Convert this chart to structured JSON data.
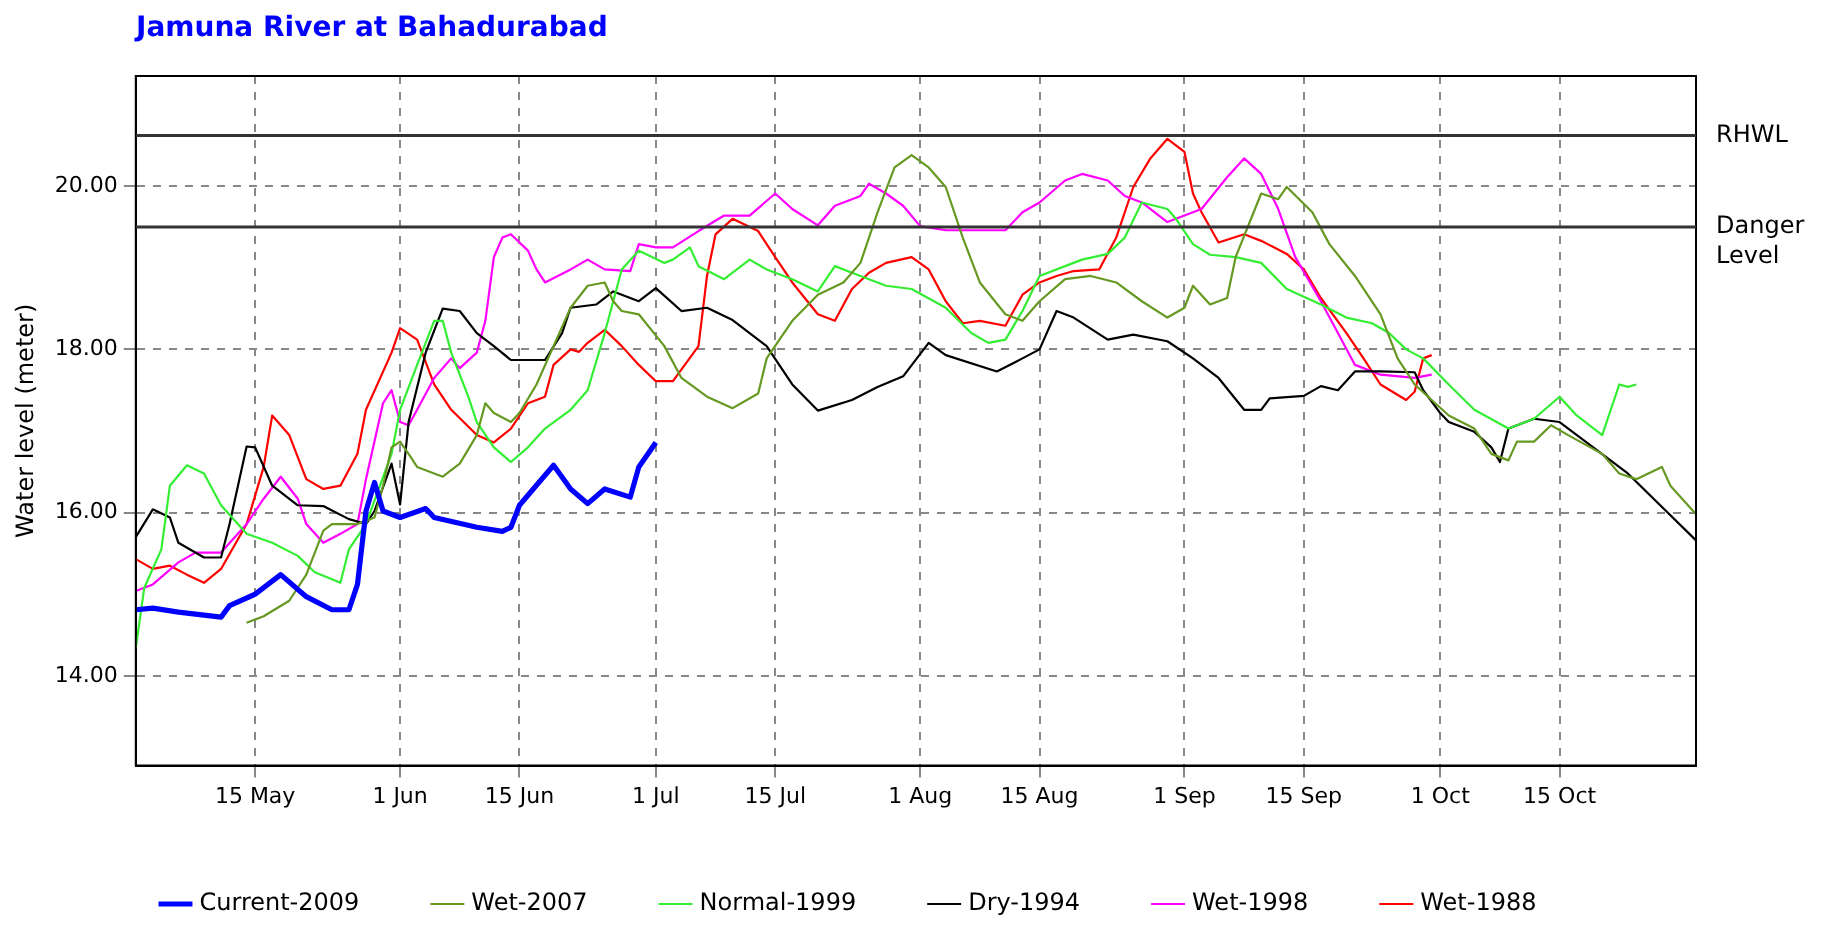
{
  "chart_data": {
    "type": "line",
    "title": "Jamuna River at Bahadurabad",
    "ylabel": "Water level (meter)",
    "xlim": [
      "--05-01",
      "--10-31"
    ],
    "xticks": [
      {
        "value": "--05-15",
        "label": "15 May"
      },
      {
        "value": "--06-01",
        "label": "1 Jun"
      },
      {
        "value": "--06-15",
        "label": "15 Jun"
      },
      {
        "value": "--07-01",
        "label": "1 Jul"
      },
      {
        "value": "--07-15",
        "label": "15 Jul"
      },
      {
        "value": "--08-01",
        "label": "1 Aug"
      },
      {
        "value": "--08-15",
        "label": "15 Aug"
      },
      {
        "value": "--09-01",
        "label": "1 Sep"
      },
      {
        "value": "--09-15",
        "label": "15 Sep"
      },
      {
        "value": "--10-01",
        "label": "1 Oct"
      },
      {
        "value": "--10-15",
        "label": "15 Oct"
      }
    ],
    "ylim": [
      12.9,
      21.35
    ],
    "yticks": [
      {
        "value": 14,
        "label": "14.00"
      },
      {
        "value": 16,
        "label": "16.00"
      },
      {
        "value": 18,
        "label": "18.00"
      },
      {
        "value": 20,
        "label": "20.00"
      }
    ],
    "grid": true,
    "legend": "bottom",
    "ref_lines": [
      {
        "axis": "y",
        "value": 20.62,
        "label": "RHWL",
        "color": "#333333"
      },
      {
        "axis": "y",
        "value": 19.5,
        "label": "Danger Level",
        "color": "#333333"
      }
    ],
    "series": [
      {
        "name": "Current-2009",
        "color": "#0000ff",
        "x": [
          "--05-01",
          "--05-03",
          "--05-06",
          "--05-11",
          "--05-12",
          "--05-15",
          "--05-18",
          "--05-21",
          "--05-24",
          "--05-26",
          "--05-27",
          "--05-28",
          "--05-29",
          "--05-30",
          "--06-01",
          "--06-04",
          "--06-05",
          "--06-10",
          "--06-13",
          "--06-14",
          "--06-15",
          "--06-19",
          "--06-21",
          "--06-23",
          "--06-25",
          "--06-28",
          "--06-29",
          "--07-01"
        ],
        "values": [
          14.81,
          14.83,
          14.78,
          14.72,
          14.86,
          15.0,
          15.24,
          14.97,
          14.81,
          14.81,
          15.12,
          16.02,
          16.37,
          16.02,
          15.94,
          16.05,
          15.94,
          15.82,
          15.77,
          15.82,
          16.09,
          16.58,
          16.29,
          16.11,
          16.29,
          16.19,
          16.56,
          16.86
        ]
      },
      {
        "name": "Wet-2007",
        "color": "#669922",
        "x": [
          "--05-14",
          "--05-16",
          "--05-19",
          "--05-21",
          "--05-23",
          "--05-24",
          "--05-27",
          "--05-29",
          "--05-30",
          "--05-31",
          "--06-01",
          "--06-02",
          "--06-03",
          "--06-06",
          "--06-08",
          "--06-10",
          "--06-11",
          "--06-12",
          "--06-14",
          "--06-15",
          "--06-17",
          "--06-19",
          "--06-21",
          "--06-23",
          "--06-25",
          "--06-26",
          "--06-27",
          "--06-29",
          "--07-02",
          "--07-04",
          "--07-07",
          "--07-10",
          "--07-13",
          "--07-14",
          "--07-17",
          "--07-20",
          "--07-23",
          "--07-25",
          "--07-27",
          "--07-29",
          "--07-31",
          "--08-02",
          "--08-04",
          "--08-06",
          "--08-08",
          "--08-11",
          "--08-13",
          "--08-15",
          "--08-18",
          "--08-21",
          "--08-24",
          "--08-27",
          "--08-30",
          "--09-01",
          "--09-02",
          "--09-04",
          "--09-06",
          "--09-07",
          "--09-10",
          "--09-12",
          "--09-13",
          "--09-16",
          "--09-18",
          "--09-21",
          "--09-24",
          "--09-26",
          "--09-28",
          "--09-30",
          "--10-02",
          "--10-05",
          "--10-07",
          "--10-09",
          "--10-10",
          "--10-12",
          "--10-14",
          "--10-16",
          "--10-20",
          "--10-22",
          "--10-24",
          "--10-27",
          "--10-28",
          "--10-31"
        ],
        "values": [
          14.65,
          14.73,
          14.92,
          15.24,
          15.78,
          15.86,
          15.86,
          15.94,
          16.33,
          16.8,
          16.87,
          16.72,
          16.56,
          16.44,
          16.6,
          16.95,
          17.34,
          17.22,
          17.11,
          17.22,
          17.57,
          18.04,
          18.51,
          18.78,
          18.82,
          18.59,
          18.47,
          18.43,
          18.04,
          17.65,
          17.42,
          17.28,
          17.46,
          17.89,
          18.35,
          18.67,
          18.82,
          19.06,
          19.68,
          20.23,
          20.38,
          20.23,
          19.99,
          19.37,
          18.82,
          18.43,
          18.35,
          18.59,
          18.86,
          18.9,
          18.82,
          18.59,
          18.39,
          18.51,
          18.78,
          18.55,
          18.63,
          19.13,
          19.91,
          19.84,
          19.99,
          19.68,
          19.29,
          18.9,
          18.43,
          17.89,
          17.57,
          17.38,
          17.19,
          17.03,
          16.72,
          16.64,
          16.87,
          16.87,
          17.07,
          16.95,
          16.72,
          16.48,
          16.41,
          16.56,
          16.33,
          15.98
        ]
      },
      {
        "name": "Normal-1999",
        "color": "#33ee33",
        "x": [
          "--05-01",
          "--05-02",
          "--05-04",
          "--05-05",
          "--05-07",
          "--05-09",
          "--05-11",
          "--05-14",
          "--05-17",
          "--05-20",
          "--05-22",
          "--05-25",
          "--05-26",
          "--05-28",
          "--05-31",
          "--06-01",
          "--06-03",
          "--06-05",
          "--06-06",
          "--06-07",
          "--06-09",
          "--06-10",
          "--06-12",
          "--06-14",
          "--06-16",
          "--06-18",
          "--06-21",
          "--06-23",
          "--06-25",
          "--06-27",
          "--06-29",
          "--07-02",
          "--07-03",
          "--07-05",
          "--07-06",
          "--07-09",
          "--07-12",
          "--07-14",
          "--07-17",
          "--07-20",
          "--07-22",
          "--07-24",
          "--07-28",
          "--07-31",
          "--08-04",
          "--08-07",
          "--08-09",
          "--08-11",
          "--08-13",
          "--08-15",
          "--08-18",
          "--08-20",
          "--08-23",
          "--08-25",
          "--08-27",
          "--08-30",
          "--08-31",
          "--09-02",
          "--09-04",
          "--09-07",
          "--09-10",
          "--09-13",
          "--09-17",
          "--09-20",
          "--09-23",
          "--09-25",
          "--09-27",
          "--09-29",
          "--10-02",
          "--10-05",
          "--10-09",
          "--10-12",
          "--10-15",
          "--10-17",
          "--10-20",
          "--10-22",
          "--10-23",
          "--10-24"
        ],
        "values": [
          14.34,
          15.08,
          15.55,
          16.33,
          16.58,
          16.48,
          16.09,
          15.74,
          15.63,
          15.47,
          15.27,
          15.14,
          15.55,
          15.86,
          16.72,
          17.26,
          17.81,
          18.35,
          18.35,
          17.96,
          17.42,
          17.11,
          16.8,
          16.62,
          16.8,
          17.03,
          17.26,
          17.5,
          18.2,
          18.98,
          19.21,
          19.06,
          19.1,
          19.25,
          19.02,
          18.86,
          19.1,
          18.98,
          18.86,
          18.71,
          19.02,
          18.94,
          18.78,
          18.74,
          18.51,
          18.2,
          18.08,
          18.12,
          18.47,
          18.9,
          19.02,
          19.1,
          19.17,
          19.37,
          19.8,
          19.72,
          19.6,
          19.29,
          19.16,
          19.13,
          19.06,
          18.74,
          18.55,
          18.39,
          18.32,
          18.2,
          18.0,
          17.89,
          17.57,
          17.26,
          17.03,
          17.15,
          17.42,
          17.19,
          16.95,
          17.57,
          17.54,
          17.57
        ]
      },
      {
        "name": "Dry-1994",
        "color": "#000000",
        "x": [
          "--05-01",
          "--05-03",
          "--05-05",
          "--05-06",
          "--05-09",
          "--05-11",
          "--05-12",
          "--05-14",
          "--05-15",
          "--05-17",
          "--05-20",
          "--05-23",
          "--05-26",
          "--05-28",
          "--05-29",
          "--05-31",
          "--06-01",
          "--06-02",
          "--06-04",
          "--06-06",
          "--06-08",
          "--06-10",
          "--06-12",
          "--06-14",
          "--06-18",
          "--06-20",
          "--06-21",
          "--06-24",
          "--06-26",
          "--06-29",
          "--07-01",
          "--07-04",
          "--07-07",
          "--07-10",
          "--07-14",
          "--07-17",
          "--07-20",
          "--07-24",
          "--07-27",
          "--07-30",
          "--08-02",
          "--08-04",
          "--08-10",
          "--08-13",
          "--08-15",
          "--08-17",
          "--08-19",
          "--08-23",
          "--08-26",
          "--08-30",
          "--09-02",
          "--09-05",
          "--09-08",
          "--09-10",
          "--09-11",
          "--09-15",
          "--09-17",
          "--09-19",
          "--09-21",
          "--09-24",
          "--09-28",
          "--09-29",
          "--10-01",
          "--10-02",
          "--10-05",
          "--10-07",
          "--10-08",
          "--10-09",
          "--10-12",
          "--10-15",
          "--10-23",
          "--10-31"
        ],
        "values": [
          15.7,
          16.04,
          15.94,
          15.63,
          15.45,
          15.45,
          15.86,
          16.81,
          16.8,
          16.33,
          16.09,
          16.08,
          15.92,
          15.86,
          16.02,
          16.6,
          16.1,
          17.11,
          17.96,
          18.5,
          18.47,
          18.2,
          18.04,
          17.87,
          17.87,
          18.2,
          18.51,
          18.55,
          18.71,
          18.59,
          18.75,
          18.47,
          18.51,
          18.36,
          18.04,
          17.57,
          17.25,
          17.38,
          17.54,
          17.67,
          18.08,
          17.93,
          17.73,
          17.89,
          18.0,
          18.47,
          18.39,
          18.12,
          18.18,
          18.1,
          17.89,
          17.65,
          17.26,
          17.26,
          17.4,
          17.43,
          17.55,
          17.5,
          17.73,
          17.73,
          17.72,
          17.5,
          17.22,
          17.11,
          16.99,
          16.8,
          16.62,
          17.03,
          17.15,
          17.11,
          16.48,
          15.66
        ]
      },
      {
        "name": "Wet-1998",
        "color": "#ff00ff",
        "x": [
          "--05-01",
          "--05-03",
          "--05-06",
          "--05-08",
          "--05-11",
          "--05-14",
          "--05-16",
          "--05-18",
          "--05-20",
          "--05-21",
          "--05-23",
          "--05-25",
          "--05-27",
          "--05-28",
          "--05-30",
          "--05-31",
          "--06-01",
          "--06-02",
          "--06-03",
          "--06-05",
          "--06-07",
          "--06-08",
          "--06-10",
          "--06-11",
          "--06-12",
          "--06-13",
          "--06-14",
          "--06-16",
          "--06-17",
          "--06-18",
          "--06-21",
          "--06-23",
          "--06-25",
          "--06-28",
          "--06-29",
          "--07-01",
          "--07-03",
          "--07-06",
          "--07-09",
          "--07-12",
          "--07-15",
          "--07-17",
          "--07-20",
          "--07-22",
          "--07-25",
          "--07-26",
          "--07-28",
          "--07-30",
          "--08-01",
          "--08-04",
          "--08-11",
          "--08-13",
          "--08-15",
          "--08-18",
          "--08-20",
          "--08-23",
          "--08-25",
          "--08-27",
          "--08-30",
          "--09-02",
          "--09-03",
          "--09-06",
          "--09-08",
          "--09-10",
          "--09-12",
          "--09-14",
          "--09-17",
          "--09-19",
          "--09-21",
          "--09-24",
          "--09-28",
          "--09-30"
        ],
        "values": [
          15.04,
          15.12,
          15.39,
          15.51,
          15.51,
          15.86,
          16.17,
          16.44,
          16.17,
          15.86,
          15.63,
          15.74,
          15.86,
          16.41,
          17.34,
          17.5,
          17.11,
          17.07,
          17.26,
          17.65,
          17.89,
          17.77,
          17.96,
          18.35,
          19.13,
          19.37,
          19.41,
          19.21,
          18.98,
          18.82,
          18.98,
          19.1,
          18.98,
          18.96,
          19.29,
          19.25,
          19.25,
          19.45,
          19.64,
          19.64,
          19.91,
          19.72,
          19.52,
          19.76,
          19.88,
          20.03,
          19.91,
          19.76,
          19.51,
          19.46,
          19.46,
          19.68,
          19.8,
          20.07,
          20.15,
          20.07,
          19.88,
          19.8,
          19.56,
          19.68,
          19.72,
          20.11,
          20.34,
          20.15,
          19.72,
          19.13,
          18.59,
          18.2,
          17.81,
          17.69,
          17.65,
          17.69
        ]
      },
      {
        "name": "Wet-1988",
        "color": "#ff0000",
        "x": [
          "--05-01",
          "--05-03",
          "--05-05",
          "--05-07",
          "--05-09",
          "--05-11",
          "--05-14",
          "--05-16",
          "--05-17",
          "--05-19",
          "--05-21",
          "--05-23",
          "--05-25",
          "--05-27",
          "--05-28",
          "--05-31",
          "--06-01",
          "--06-03",
          "--06-05",
          "--06-07",
          "--06-10",
          "--06-12",
          "--06-14",
          "--06-16",
          "--06-18",
          "--06-19",
          "--06-21",
          "--06-22",
          "--06-23",
          "--06-25",
          "--06-27",
          "--06-29",
          "--07-01",
          "--07-03",
          "--07-06",
          "--07-07",
          "--07-08",
          "--07-10",
          "--07-13",
          "--07-15",
          "--07-17",
          "--07-20",
          "--07-22",
          "--07-24",
          "--07-26",
          "--07-28",
          "--07-31",
          "--08-02",
          "--08-04",
          "--08-06",
          "--08-08",
          "--08-11",
          "--08-13",
          "--08-15",
          "--08-17",
          "--08-19",
          "--08-22",
          "--08-24",
          "--08-26",
          "--08-28",
          "--08-30",
          "--09-01",
          "--09-02",
          "--09-03",
          "--09-05",
          "--09-08",
          "--09-10",
          "--09-13",
          "--09-15",
          "--09-17",
          "--09-20",
          "--09-22",
          "--09-24",
          "--09-27",
          "--09-28",
          "--09-29",
          "--09-30"
        ],
        "values": [
          15.43,
          15.31,
          15.35,
          15.24,
          15.14,
          15.31,
          15.86,
          16.56,
          17.19,
          16.95,
          16.41,
          16.29,
          16.33,
          16.72,
          17.26,
          17.96,
          18.26,
          18.12,
          17.57,
          17.26,
          16.95,
          16.86,
          17.03,
          17.34,
          17.42,
          17.81,
          18.0,
          17.97,
          18.08,
          18.24,
          18.04,
          17.81,
          17.61,
          17.61,
          18.04,
          18.9,
          19.41,
          19.6,
          19.45,
          19.13,
          18.82,
          18.43,
          18.35,
          18.74,
          18.94,
          19.06,
          19.13,
          18.98,
          18.59,
          18.32,
          18.35,
          18.29,
          18.67,
          18.82,
          18.9,
          18.96,
          18.98,
          19.37,
          19.99,
          20.34,
          20.58,
          20.42,
          19.91,
          19.68,
          19.31,
          19.41,
          19.33,
          19.17,
          18.98,
          18.63,
          18.2,
          17.89,
          17.57,
          17.38,
          17.48,
          17.89,
          17.93
        ]
      }
    ]
  }
}
